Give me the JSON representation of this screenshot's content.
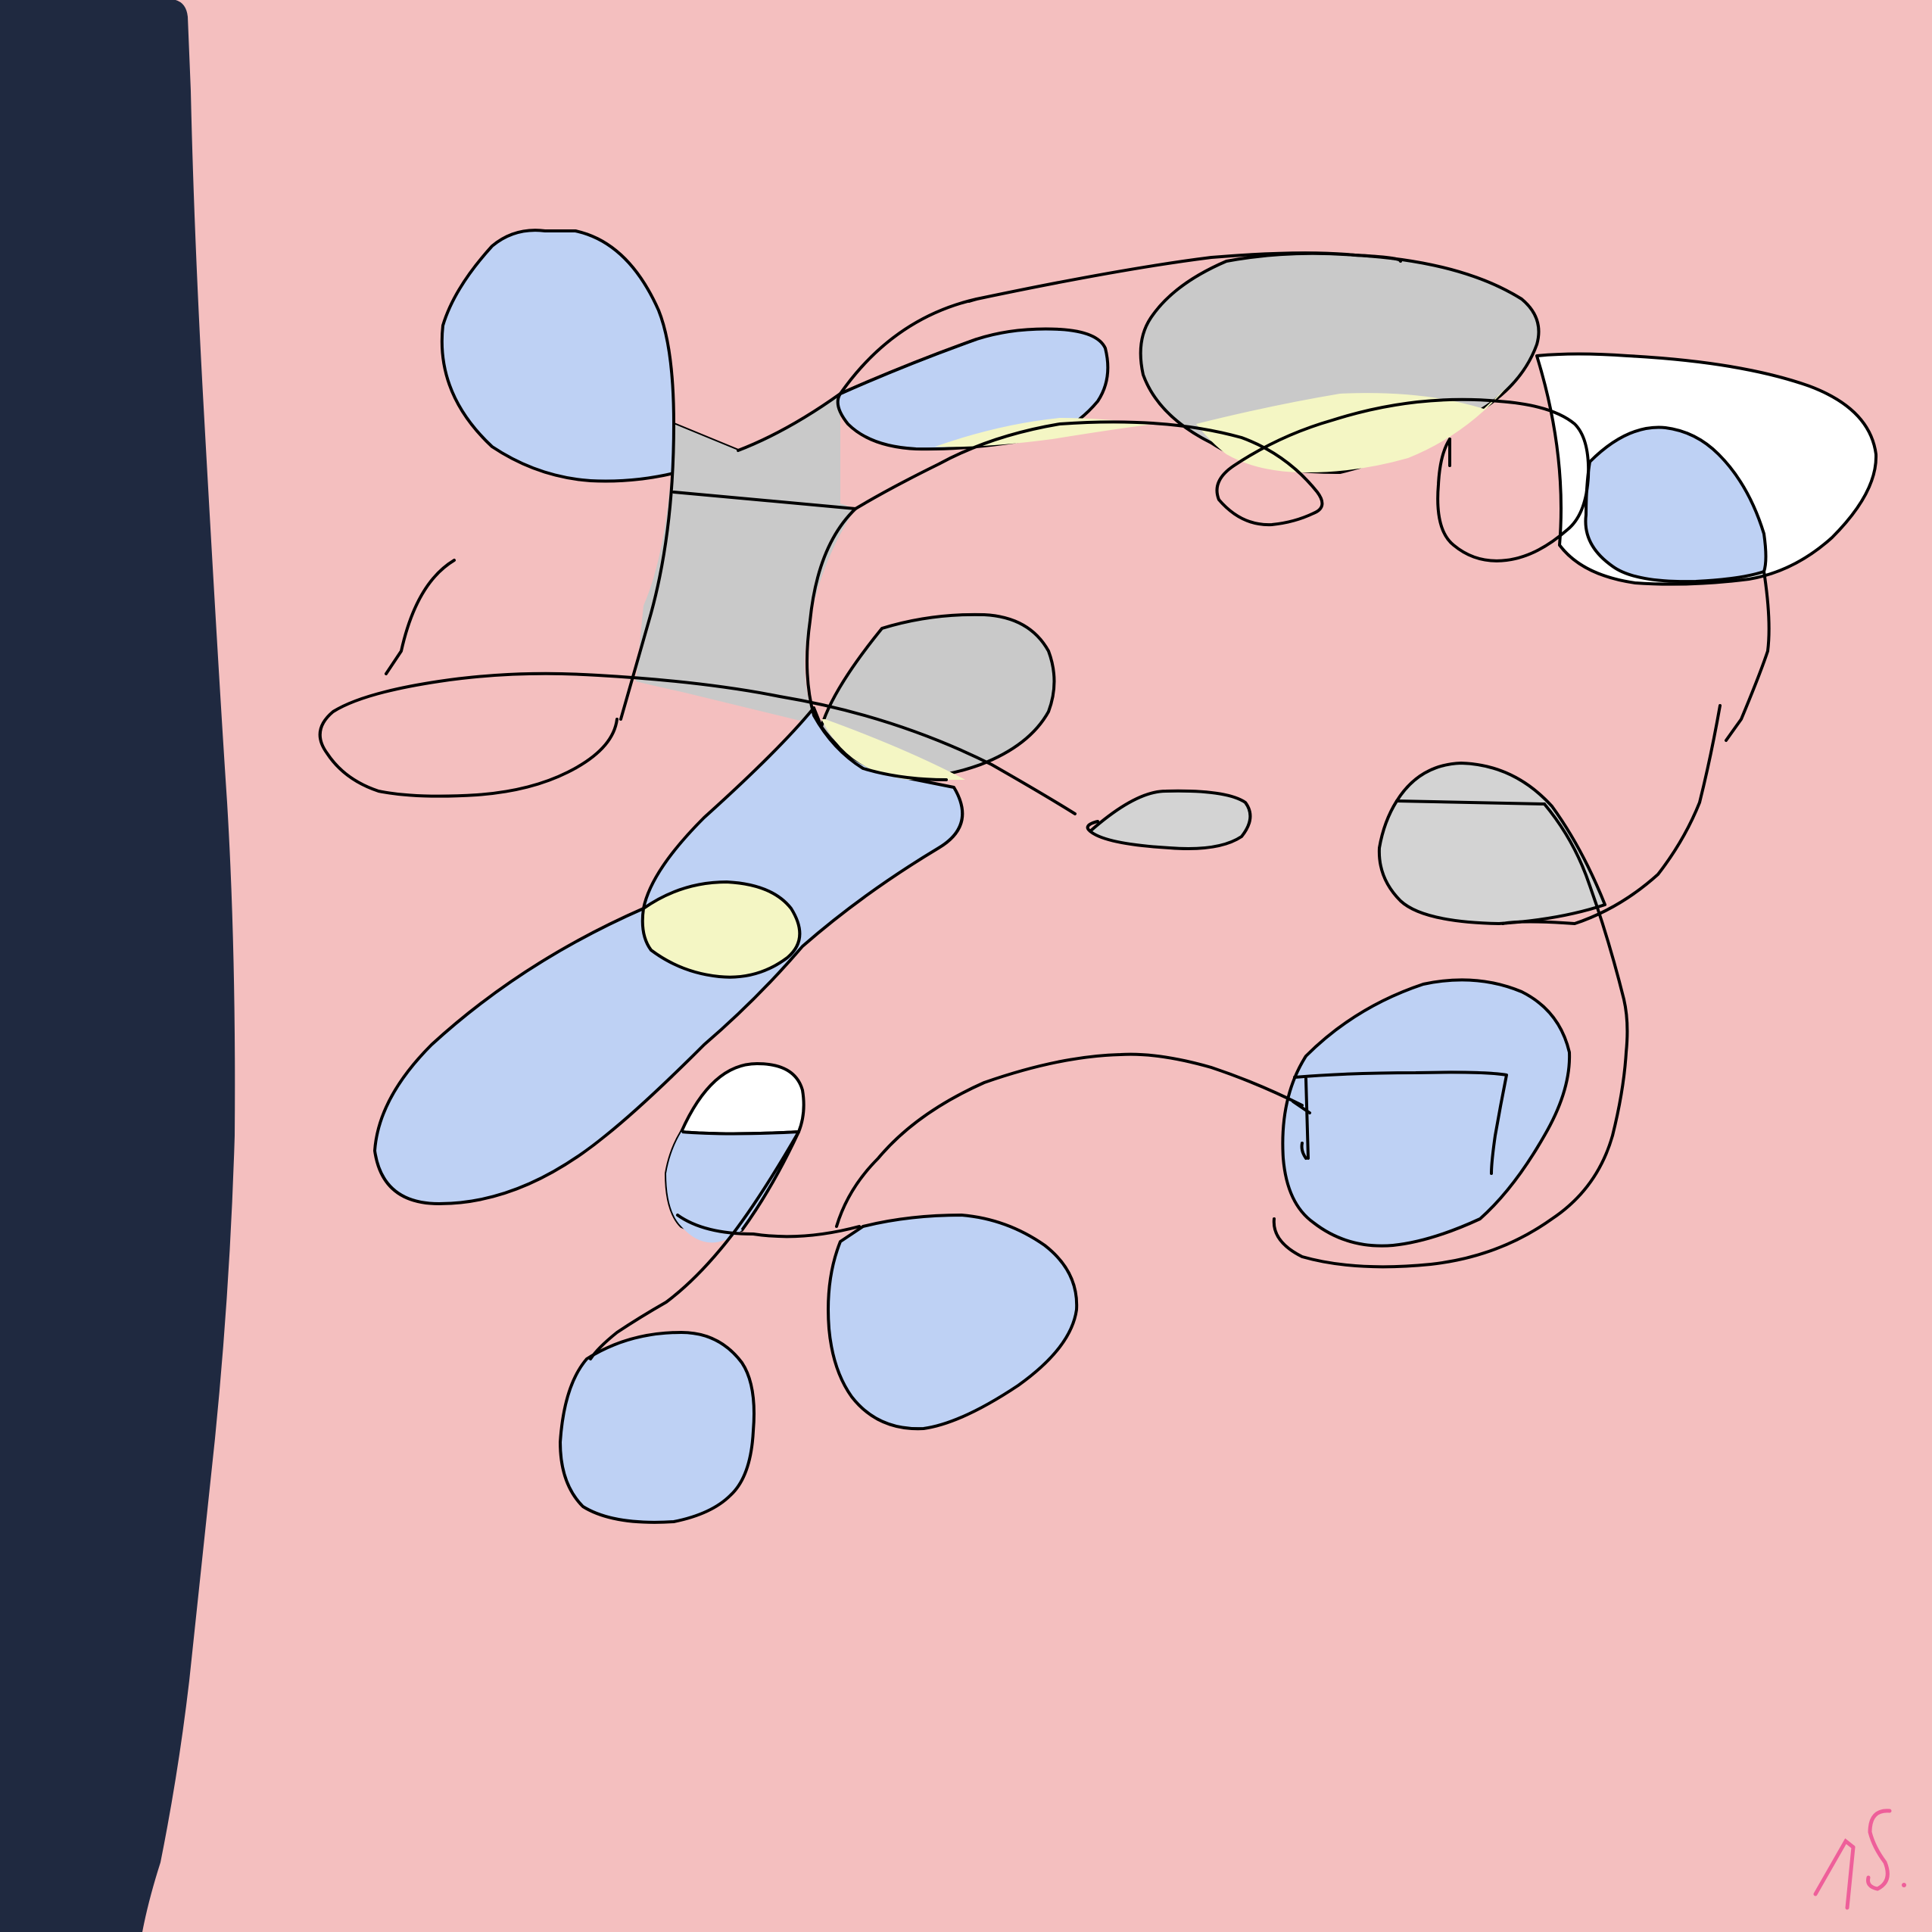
{
  "artwork": {
    "signature": "AS.",
    "colors": {
      "background": "#f4bfbf",
      "panel": "#1f2940",
      "blue": "#bed1f4",
      "gray": "#c9c9c9",
      "light_gray": "#d3d3d3",
      "yellow": "#f4f6c4",
      "white": "#ffffff",
      "line": "#000000",
      "signature": "#ee5f9a"
    }
  }
}
